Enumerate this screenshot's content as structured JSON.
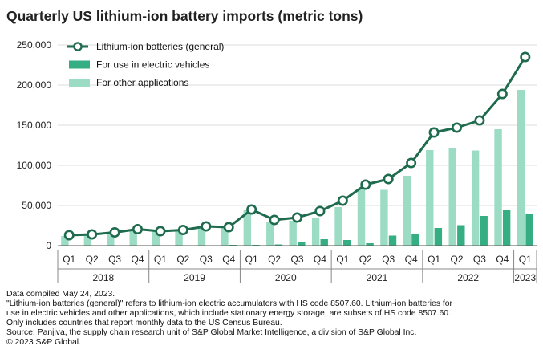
{
  "chart_data": {
    "type": "bar",
    "title": "Quarterly US lithium-ion battery imports (metric tons)",
    "xlabel": "",
    "ylabel": "",
    "ylim": [
      0,
      250000
    ],
    "yticks": [
      0,
      50000,
      100000,
      150000,
      200000,
      250000
    ],
    "ytick_labels": [
      "0",
      "50,000",
      "100,000",
      "150,000",
      "200,000",
      "250,000"
    ],
    "categories": [
      "Q1",
      "Q2",
      "Q3",
      "Q4",
      "Q1",
      "Q2",
      "Q3",
      "Q4",
      "Q1",
      "Q2",
      "Q3",
      "Q4",
      "Q1",
      "Q2",
      "Q3",
      "Q4",
      "Q1",
      "Q2",
      "Q3",
      "Q4",
      "Q1"
    ],
    "years": [
      {
        "label": "2018",
        "quarters": 4
      },
      {
        "label": "2019",
        "quarters": 4
      },
      {
        "label": "2020",
        "quarters": 4
      },
      {
        "label": "2021",
        "quarters": 4
      },
      {
        "label": "2022",
        "quarters": 4
      },
      {
        "label": "2023",
        "quarters": 1
      }
    ],
    "legend_position": "top-left",
    "series": [
      {
        "name": "Lithium-ion batteries (general)",
        "kind": "line",
        "color": "#1e6b4e",
        "values": [
          13000,
          14000,
          16500,
          20500,
          18000,
          19500,
          24000,
          23000,
          45000,
          32000,
          35000,
          43000,
          56000,
          76000,
          83000,
          103000,
          141000,
          147000,
          156000,
          189000,
          235000
        ]
      },
      {
        "name": "For use in electric vehicles",
        "kind": "bar",
        "color": "#36ae84",
        "values": [
          0,
          0,
          0,
          0,
          0,
          500,
          500,
          1000,
          1000,
          1500,
          4000,
          8000,
          7000,
          3000,
          12500,
          15000,
          22000,
          25500,
          37000,
          44000,
          40000
        ]
      },
      {
        "name": "For other applications",
        "kind": "bar",
        "color": "#9cdcc4",
        "values": [
          12000,
          13000,
          15500,
          19500,
          17500,
          18500,
          23500,
          22000,
          44000,
          30000,
          31000,
          34000,
          48000,
          71000,
          69500,
          87000,
          119000,
          121500,
          118500,
          145000,
          194000
        ]
      }
    ]
  },
  "notes": [
    "Data compiled May 24, 2023.",
    "\"Lithium-ion batteries (general)\" refers to lithium-ion electric accumulators with HS code 8507.60. Lithium-ion batteries for",
    "use in electric vehicles and other applications, which include stationary energy storage, are subsets of HS code 8507.60.",
    "Only includes countries that report monthly data to the US Census Bureau.",
    "Source: Panjiva, the supply chain research unit of S&P Global Market Intelligence, a division of S&P Global Inc.",
    "© 2023 S&P Global."
  ]
}
